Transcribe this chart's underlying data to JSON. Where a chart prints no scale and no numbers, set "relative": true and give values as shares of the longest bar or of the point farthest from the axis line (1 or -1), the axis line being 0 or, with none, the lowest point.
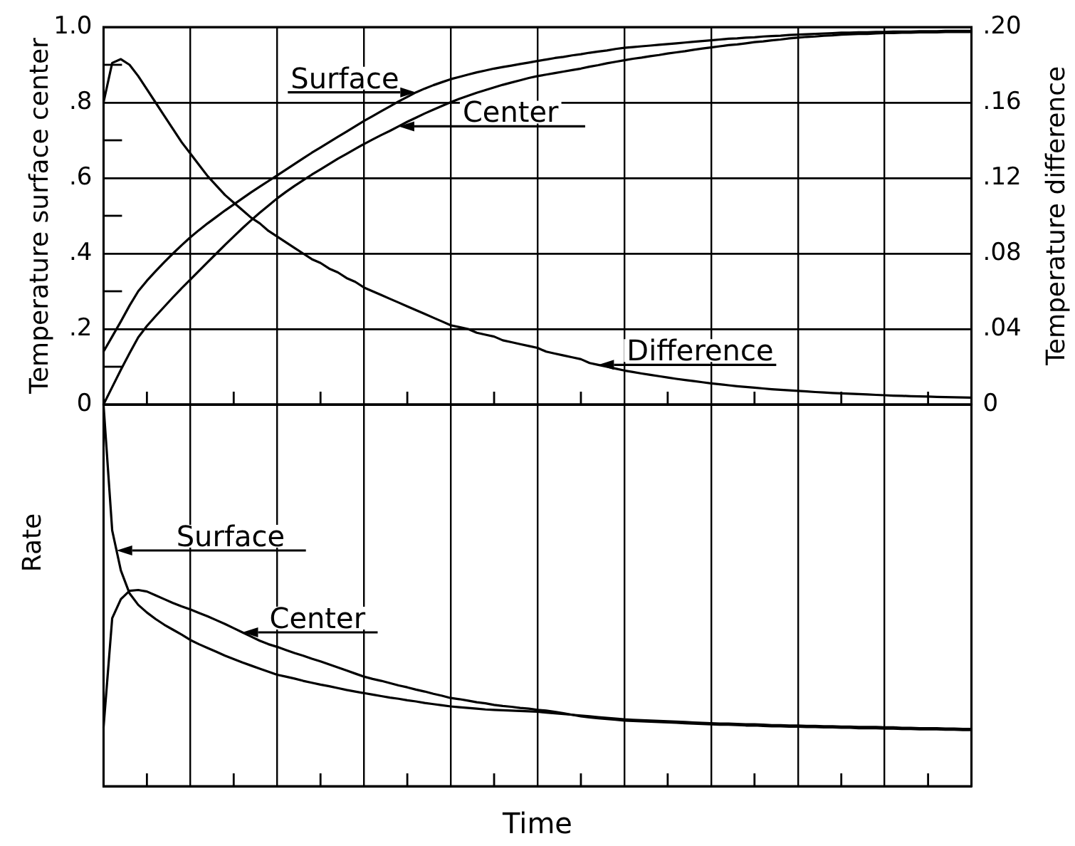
{
  "chart_data": [
    {
      "type": "line",
      "categories": [
        null,
        null,
        null,
        null,
        null,
        null,
        null,
        null,
        null,
        null,
        null,
        null,
        null,
        null,
        null,
        null,
        null,
        null,
        null,
        null,
        null,
        null,
        null,
        null,
        null,
        null,
        null,
        null,
        null,
        null,
        null,
        null,
        null,
        null,
        null,
        null,
        null,
        null,
        null,
        null,
        null,
        null,
        null,
        null,
        null,
        null,
        null,
        null,
        null,
        null,
        null,
        null,
        null,
        null,
        null,
        null,
        null,
        null,
        null,
        null,
        null,
        null,
        null,
        null,
        null,
        null,
        null,
        null,
        null,
        null,
        null,
        null,
        null,
        null,
        null,
        null,
        null,
        null,
        null,
        null,
        null,
        null,
        null,
        null,
        null,
        null,
        null,
        null,
        null,
        null,
        null,
        null,
        null,
        null,
        null,
        null,
        null,
        null,
        null,
        null,
        null
      ],
      "ylabel": "Temperature surface center",
      "y2label": "Temperature difference",
      "ylim": [
        0,
        1
      ],
      "yticks": [
        0,
        {
          "value": 0.2,
          "label": ".2"
        },
        {
          "value": 0.4,
          "label": ".4"
        },
        {
          "value": 0.6,
          "label": ".6"
        },
        {
          "value": 0.8,
          "label": ".8"
        },
        {
          "value": 1,
          "label": "1.0"
        }
      ],
      "y2lim": [
        0,
        0.2
      ],
      "y2ticks": [
        0,
        {
          "value": 0.04,
          "label": ".04"
        },
        {
          "value": 0.08,
          "label": ".08"
        },
        {
          "value": 0.12,
          "label": ".12"
        },
        {
          "value": 0.16,
          "label": ".16"
        },
        {
          "value": 0.2,
          "label": ".20"
        }
      ],
      "grid": true,
      "tick_labels": "y",
      "series": [
        {
          "name": "Surface",
          "color": "#000000",
          "values": [
            0.14,
            0.18,
            0.22,
            0.262,
            0.3,
            0.328,
            0.353,
            0.377,
            0.4,
            0.422,
            0.443,
            0.462,
            0.48,
            0.497,
            0.514,
            0.53,
            0.546,
            0.562,
            0.577,
            0.592,
            0.607,
            0.622,
            0.637,
            0.652,
            0.667,
            0.681,
            0.695,
            0.709,
            0.723,
            0.737,
            0.751,
            0.764,
            0.777,
            0.79,
            0.803,
            0.815,
            0.827,
            0.837,
            0.846,
            0.854,
            0.862,
            0.868,
            0.874,
            0.88,
            0.885,
            0.89,
            0.894,
            0.898,
            0.902,
            0.906,
            0.91,
            0.914,
            0.918,
            0.921,
            0.925,
            0.928,
            0.932,
            0.935,
            0.938,
            0.942,
            0.945,
            0.947,
            0.949,
            0.951,
            0.953,
            0.955,
            0.957,
            0.959,
            0.961,
            0.963,
            0.965,
            0.967,
            0.969,
            0.97,
            0.972,
            0.973,
            0.975,
            0.976,
            0.977,
            0.979,
            0.98,
            0.981,
            0.982,
            0.983,
            0.984,
            0.985,
            0.985,
            0.986,
            0.986,
            0.987,
            0.987,
            0.988,
            0.988,
            0.988,
            0.989,
            0.989,
            0.989,
            0.99,
            0.99,
            0.99,
            0.99
          ]
        },
        {
          "name": "Center",
          "color": "#000000",
          "values": [
            0.0,
            0.046,
            0.092,
            0.136,
            0.178,
            0.208,
            0.234,
            0.259,
            0.284,
            0.308,
            0.331,
            0.354,
            0.377,
            0.4,
            0.423,
            0.445,
            0.467,
            0.488,
            0.508,
            0.527,
            0.546,
            0.563,
            0.579,
            0.594,
            0.609,
            0.623,
            0.637,
            0.651,
            0.664,
            0.677,
            0.69,
            0.702,
            0.714,
            0.725,
            0.737,
            0.749,
            0.76,
            0.771,
            0.781,
            0.791,
            0.801,
            0.81,
            0.818,
            0.826,
            0.833,
            0.84,
            0.847,
            0.853,
            0.859,
            0.865,
            0.87,
            0.874,
            0.878,
            0.882,
            0.886,
            0.89,
            0.895,
            0.899,
            0.904,
            0.908,
            0.912,
            0.916,
            0.919,
            0.923,
            0.926,
            0.93,
            0.933,
            0.936,
            0.94,
            0.943,
            0.946,
            0.949,
            0.952,
            0.954,
            0.957,
            0.96,
            0.962,
            0.965,
            0.967,
            0.97,
            0.972,
            0.974,
            0.975,
            0.977,
            0.978,
            0.98,
            0.981,
            0.982,
            0.982,
            0.983,
            0.984,
            0.984,
            0.985,
            0.985,
            0.986,
            0.986,
            0.986,
            0.987,
            0.987,
            0.987,
            0.987
          ]
        },
        {
          "name": "Difference",
          "color": "#000000",
          "axis": "y2",
          "values": [
            0.16,
            0.181,
            0.183,
            0.18,
            0.174,
            0.167,
            0.16,
            0.153,
            0.146,
            0.139,
            0.133,
            0.127,
            0.121,
            0.116,
            0.111,
            0.107,
            0.103,
            0.099,
            0.096,
            0.092,
            0.089,
            0.086,
            0.083,
            0.08,
            0.077,
            0.075,
            0.072,
            0.07,
            0.067,
            0.065,
            0.062,
            0.06,
            0.058,
            0.056,
            0.054,
            0.052,
            0.05,
            0.048,
            0.046,
            0.044,
            0.042,
            0.041,
            0.04,
            0.038,
            0.037,
            0.036,
            0.034,
            0.033,
            0.032,
            0.031,
            0.03,
            0.028,
            0.027,
            0.026,
            0.025,
            0.024,
            0.022,
            0.021,
            0.02,
            0.019,
            0.018,
            0.0172,
            0.0164,
            0.0157,
            0.015,
            0.0143,
            0.0136,
            0.013,
            0.0124,
            0.0118,
            0.0112,
            0.0107,
            0.0102,
            0.0097,
            0.0093,
            0.0089,
            0.0085,
            0.0081,
            0.0078,
            0.0075,
            0.0072,
            0.0069,
            0.0066,
            0.0064,
            0.0061,
            0.0059,
            0.0057,
            0.0055,
            0.0053,
            0.0051,
            0.0049,
            0.0047,
            0.0046,
            0.0044,
            0.0043,
            0.0042,
            0.004,
            0.0039,
            0.0038,
            0.0037,
            0.0036
          ]
        }
      ]
    },
    {
      "type": "line",
      "categories": [
        null,
        null,
        null,
        null,
        null,
        null,
        null,
        null,
        null,
        null,
        null,
        null,
        null,
        null,
        null,
        null,
        null,
        null,
        null,
        null,
        null,
        null,
        null,
        null,
        null,
        null,
        null,
        null,
        null,
        null,
        null,
        null,
        null,
        null,
        null,
        null,
        null,
        null,
        null,
        null,
        null,
        null,
        null,
        null,
        null,
        null,
        null,
        null,
        null,
        null,
        null,
        null,
        null,
        null,
        null,
        null,
        null,
        null,
        null,
        null,
        null,
        null,
        null,
        null,
        null,
        null,
        null,
        null,
        null,
        null,
        null,
        null,
        null,
        null,
        null,
        null,
        null,
        null,
        null,
        null,
        null,
        null,
        null,
        null,
        null,
        null,
        null,
        null,
        null,
        null,
        null,
        null,
        null,
        null,
        null,
        null,
        null,
        null,
        null,
        null,
        null
      ],
      "xlabel": "Time",
      "ylabel": "Rate",
      "relative": true,
      "grid": true,
      "tick_labels": false,
      "legend": "left",
      "series": [
        {
          "name": "Surface",
          "color": "#000000",
          "values": [
            1.0,
            0.67,
            0.565,
            0.505,
            0.475,
            0.455,
            0.438,
            0.423,
            0.41,
            0.397,
            0.383,
            0.372,
            0.362,
            0.352,
            0.342,
            0.333,
            0.324,
            0.316,
            0.308,
            0.3,
            0.292,
            0.287,
            0.282,
            0.276,
            0.271,
            0.266,
            0.262,
            0.257,
            0.252,
            0.248,
            0.244,
            0.24,
            0.236,
            0.232,
            0.229,
            0.225,
            0.222,
            0.218,
            0.215,
            0.212,
            0.209,
            0.207,
            0.205,
            0.203,
            0.201,
            0.2,
            0.199,
            0.198,
            0.197,
            0.196,
            0.195,
            0.193,
            0.191,
            0.189,
            0.187,
            0.185,
            0.183,
            0.181,
            0.179,
            0.177,
            0.175,
            0.174,
            0.173,
            0.172,
            0.171,
            0.17,
            0.169,
            0.168,
            0.167,
            0.166,
            0.165,
            0.164,
            0.164,
            0.163,
            0.162,
            0.162,
            0.161,
            0.16,
            0.16,
            0.159,
            0.159,
            0.158,
            0.158,
            0.157,
            0.157,
            0.156,
            0.156,
            0.155,
            0.155,
            0.155,
            0.154,
            0.154,
            0.153,
            0.153,
            0.152,
            0.152,
            0.152,
            0.151,
            0.151,
            0.15,
            0.15
          ]
        },
        {
          "name": "Center",
          "color": "#000000",
          "values": [
            0.153,
            0.44,
            0.49,
            0.512,
            0.514,
            0.51,
            0.5,
            0.49,
            0.48,
            0.471,
            0.463,
            0.454,
            0.445,
            0.435,
            0.425,
            0.414,
            0.403,
            0.392,
            0.381,
            0.372,
            0.365,
            0.357,
            0.349,
            0.342,
            0.334,
            0.327,
            0.319,
            0.311,
            0.303,
            0.295,
            0.287,
            0.281,
            0.276,
            0.27,
            0.264,
            0.259,
            0.253,
            0.248,
            0.242,
            0.237,
            0.231,
            0.228,
            0.224,
            0.22,
            0.217,
            0.213,
            0.21,
            0.208,
            0.205,
            0.203,
            0.2,
            0.198,
            0.195,
            0.191,
            0.187,
            0.183,
            0.18,
            0.178,
            0.176,
            0.174,
            0.172,
            0.171,
            0.17,
            0.169,
            0.168,
            0.167,
            0.166,
            0.165,
            0.164,
            0.163,
            0.162,
            0.161,
            0.161,
            0.16,
            0.159,
            0.159,
            0.158,
            0.157,
            0.157,
            0.156,
            0.156,
            0.155,
            0.155,
            0.154,
            0.154,
            0.153,
            0.153,
            0.152,
            0.152,
            0.152,
            0.151,
            0.151,
            0.15,
            0.15,
            0.149,
            0.149,
            0.149,
            0.148,
            0.148,
            0.147,
            0.147
          ]
        }
      ]
    }
  ]
}
